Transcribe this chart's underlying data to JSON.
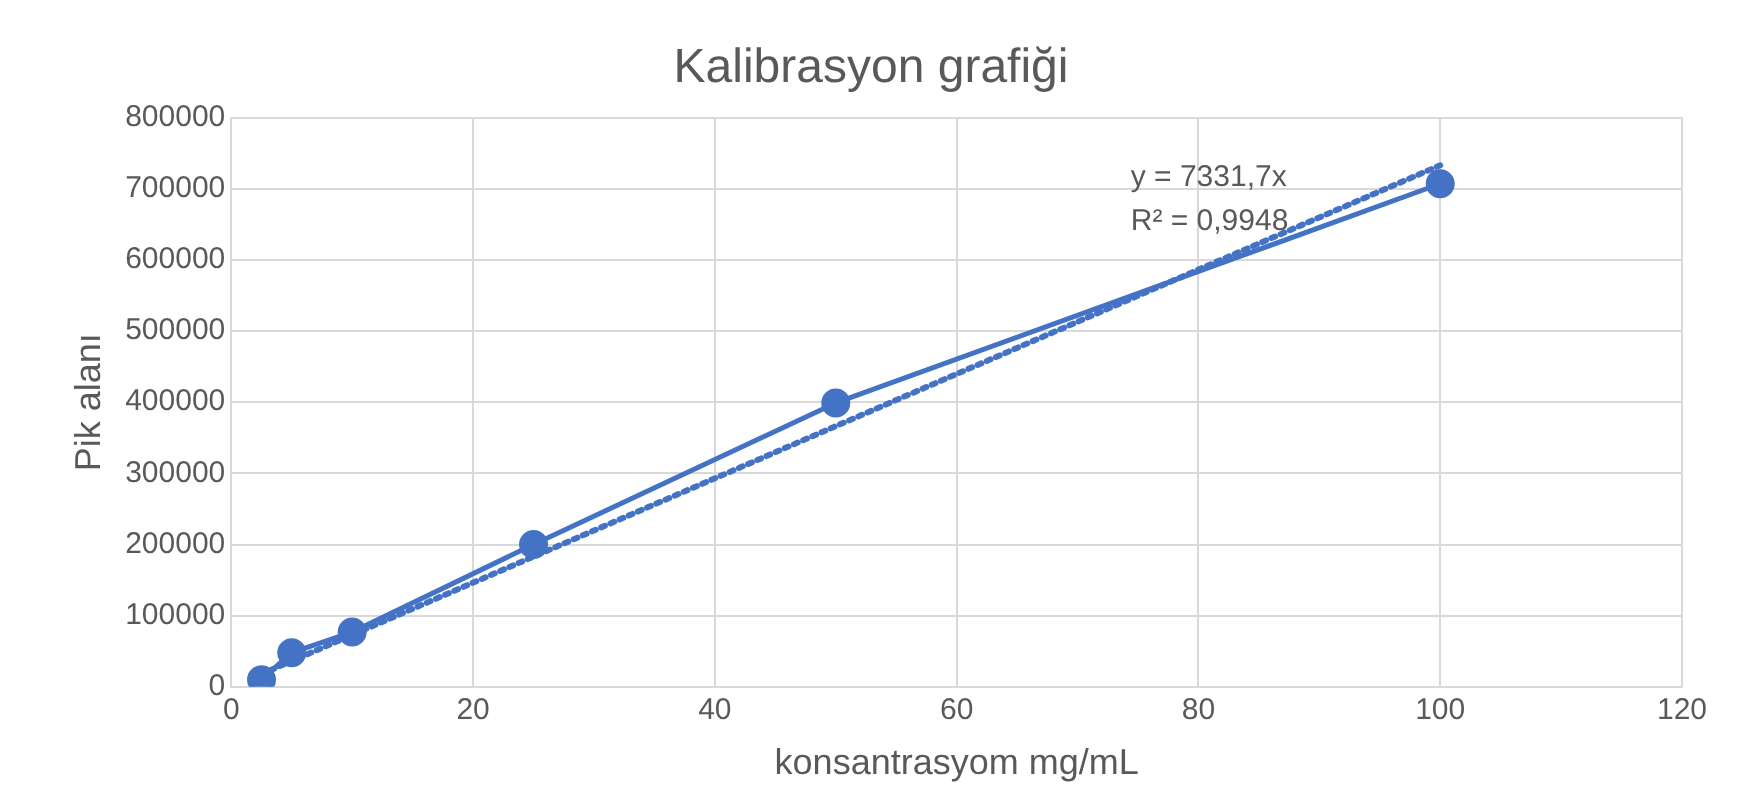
{
  "chart_data": {
    "type": "line",
    "title": "Kalibrasyon grafiği",
    "xlabel": "konsantrasyom mg/mL",
    "ylabel": "Pik alanı",
    "x": [
      2.5,
      5,
      10,
      25,
      50,
      100
    ],
    "series": [
      {
        "color": "#4472c4",
        "values": [
          10000,
          48000,
          77000,
          200000,
          399000,
          707000
        ],
        "marker": "circle",
        "line_style": "solid"
      },
      {
        "color": "#4472c4",
        "x": [
          2.5,
          100
        ],
        "values": [
          18000,
          733000
        ],
        "marker": "none",
        "line_style": "dotted"
      }
    ],
    "annotations": [
      "y = 7331,7x",
      "R² = 0,9948"
    ],
    "xlim": [
      0,
      120
    ],
    "xticks": [
      0,
      20,
      40,
      60,
      80,
      100,
      120
    ],
    "ylim": [
      0,
      800000
    ],
    "yticks": [
      0,
      100000,
      200000,
      300000,
      400000,
      500000,
      600000,
      700000,
      800000
    ],
    "grid": true,
    "legend": false
  }
}
